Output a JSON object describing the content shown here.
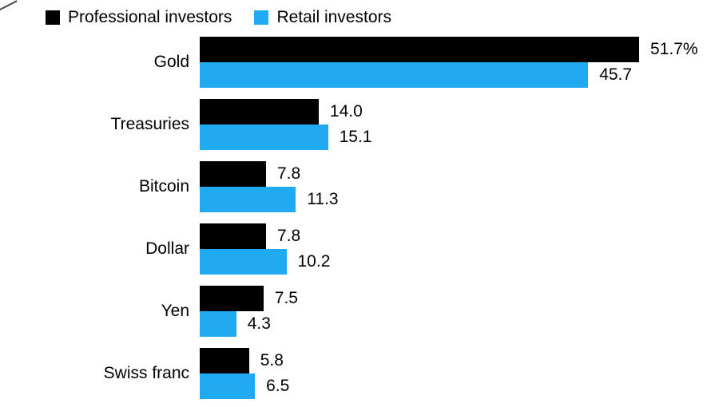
{
  "chart_data": {
    "type": "bar",
    "orientation": "horizontal",
    "title": "",
    "categories": [
      "Gold",
      "Treasuries",
      "Bitcoin",
      "Dollar",
      "Yen",
      "Swiss franc"
    ],
    "series": [
      {
        "name": "Professional investors",
        "color": "#000000",
        "values": [
          51.7,
          14.0,
          7.8,
          7.8,
          7.5,
          5.8
        ],
        "value_labels": [
          "51.7%",
          "14.0",
          "7.8",
          "7.8",
          "7.5",
          "5.8"
        ]
      },
      {
        "name": "Retail investors",
        "color": "#21a9f2",
        "values": [
          45.7,
          15.1,
          11.3,
          10.2,
          4.3,
          6.5
        ],
        "value_labels": [
          "45.7",
          "15.1",
          "11.3",
          "10.2",
          "4.3",
          "6.5"
        ]
      }
    ],
    "unit": "%",
    "xlim": [
      0,
      51.7
    ],
    "grid": false,
    "legend_position": "top-left",
    "background": "#ffffff",
    "text_color": "#000000"
  }
}
